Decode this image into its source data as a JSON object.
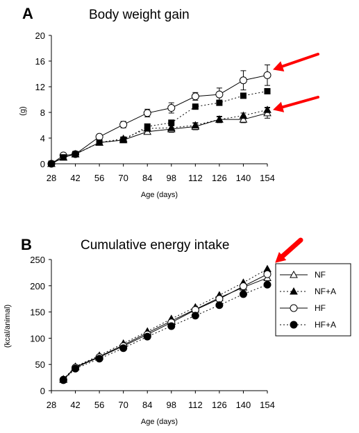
{
  "chart_data": [
    {
      "panel": "A",
      "title": "Body weight gain",
      "type": "line",
      "xlabel": "Age (days)",
      "ylabel": "(g)",
      "x_ticks": [
        28,
        42,
        56,
        70,
        84,
        98,
        112,
        126,
        140,
        154
      ],
      "y_ticks": [
        0,
        4,
        8,
        12,
        16,
        20
      ],
      "xlim": [
        28,
        154
      ],
      "ylim": [
        0,
        20
      ],
      "grid": false,
      "annotations": [
        "red-arrow",
        "red-arrow"
      ],
      "series": [
        {
          "name": "NF",
          "marker": "open-triangle",
          "line": "solid",
          "x": [
            28,
            35,
            42,
            56,
            70,
            84,
            98,
            112,
            126,
            140,
            154
          ],
          "y": [
            0,
            1.0,
            1.5,
            3.3,
            3.7,
            5.0,
            5.4,
            5.8,
            6.9,
            6.9,
            7.9
          ],
          "err": [
            0,
            0.2,
            0.2,
            0.3,
            0.4,
            0.4,
            0.5,
            0.5,
            0.5,
            0.5,
            0.8
          ]
        },
        {
          "name": "NF+A",
          "marker": "filled-triangle",
          "line": "dotted",
          "x": [
            28,
            35,
            42,
            56,
            70,
            84,
            98,
            112,
            126,
            140,
            154
          ],
          "y": [
            0,
            1.0,
            1.5,
            3.3,
            3.9,
            5.5,
            5.6,
            6.0,
            6.9,
            7.5,
            8.4
          ],
          "err": [
            0,
            0.2,
            0.2,
            0.3,
            0.3,
            0.4,
            0.4,
            0.4,
            0.4,
            0.4,
            0.4
          ]
        },
        {
          "name": "HF",
          "marker": "open-circle",
          "line": "solid",
          "x": [
            28,
            35,
            42,
            56,
            70,
            84,
            98,
            112,
            126,
            140,
            154
          ],
          "y": [
            0,
            1.3,
            1.5,
            4.2,
            6.1,
            7.9,
            8.7,
            10.5,
            10.8,
            13.0,
            13.8
          ],
          "err": [
            0,
            0.2,
            0.2,
            0.3,
            0.5,
            0.6,
            0.8,
            0.6,
            1.0,
            1.5,
            1.6
          ]
        },
        {
          "name": "HF+A",
          "marker": "filled-square",
          "line": "dotted",
          "x": [
            28,
            35,
            42,
            56,
            70,
            84,
            98,
            112,
            126,
            140,
            154
          ],
          "y": [
            0,
            1.0,
            1.5,
            3.3,
            3.7,
            5.8,
            6.4,
            8.9,
            9.5,
            10.6,
            11.3
          ],
          "err": [
            0,
            0.2,
            0.2,
            0.3,
            0.3,
            0.4,
            0.3,
            0.3,
            0.3,
            0.3,
            0.4
          ]
        }
      ]
    },
    {
      "panel": "B",
      "title": "Cumulative energy intake",
      "type": "line",
      "xlabel": "Age (days)",
      "ylabel": "(kcal/animal)",
      "x_ticks": [
        28,
        42,
        56,
        70,
        84,
        98,
        112,
        126,
        140,
        154
      ],
      "y_ticks": [
        0,
        50,
        100,
        150,
        200,
        250
      ],
      "xlim": [
        28,
        154
      ],
      "ylim": [
        0,
        250
      ],
      "grid": false,
      "legend": "right",
      "annotations": [
        "red-arrow"
      ],
      "series": [
        {
          "name": "NF",
          "marker": "open-triangle",
          "line": "solid",
          "x": [
            35,
            42,
            56,
            70,
            84,
            98,
            112,
            126,
            140,
            154
          ],
          "y": [
            21,
            45,
            65,
            87,
            110,
            133,
            155,
            177,
            197,
            215
          ]
        },
        {
          "name": "NF+A",
          "marker": "filled-triangle",
          "line": "dotted",
          "x": [
            35,
            42,
            56,
            70,
            84,
            98,
            112,
            126,
            140,
            154
          ],
          "y": [
            22,
            46,
            67,
            90,
            113,
            137,
            159,
            182,
            206,
            232
          ]
        },
        {
          "name": "HF",
          "marker": "open-circle",
          "line": "solid",
          "x": [
            35,
            42,
            56,
            70,
            84,
            98,
            112,
            126,
            140,
            154
          ],
          "y": [
            21,
            44,
            64,
            85,
            107,
            130,
            154,
            175,
            199,
            222
          ]
        },
        {
          "name": "HF+A",
          "marker": "filled-circle",
          "line": "dotted",
          "x": [
            35,
            42,
            56,
            70,
            84,
            98,
            112,
            126,
            140,
            154
          ],
          "y": [
            20,
            42,
            61,
            81,
            103,
            123,
            143,
            163,
            184,
            202
          ]
        }
      ]
    }
  ],
  "colors": {
    "ink": "#000000",
    "arrow": "#ff0000"
  }
}
